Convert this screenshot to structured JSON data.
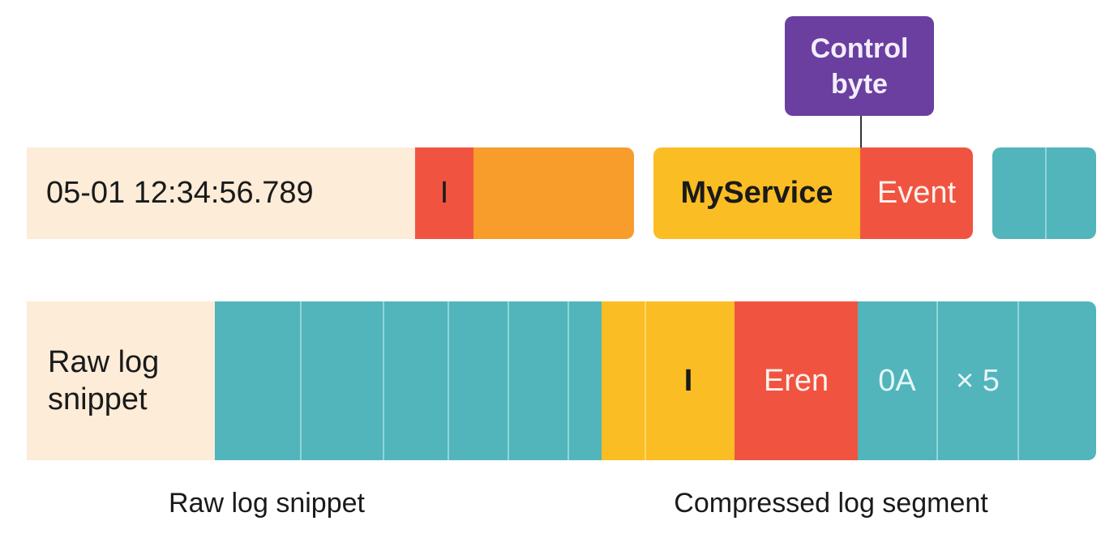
{
  "colors": {
    "beige": "#fcecd8",
    "red": "#f05441",
    "orange": "#f89c2c",
    "yellow": "#fbbd24",
    "teal": "#52b5bb",
    "purple": "#6a3fa0"
  },
  "callout": {
    "line1": "Control",
    "line2": "byte"
  },
  "row1": {
    "timestamp": "05-01 12:34:56.789",
    "level": "I",
    "service": "MyService",
    "event": "Event"
  },
  "row2": {
    "label_line1": "Raw log",
    "label_line2": "snippet",
    "level": "I",
    "eren": "Eren",
    "hex": "0A",
    "repeat": "× 5"
  },
  "captions": {
    "left": "Raw log snippet",
    "right": "Compressed log segment"
  }
}
